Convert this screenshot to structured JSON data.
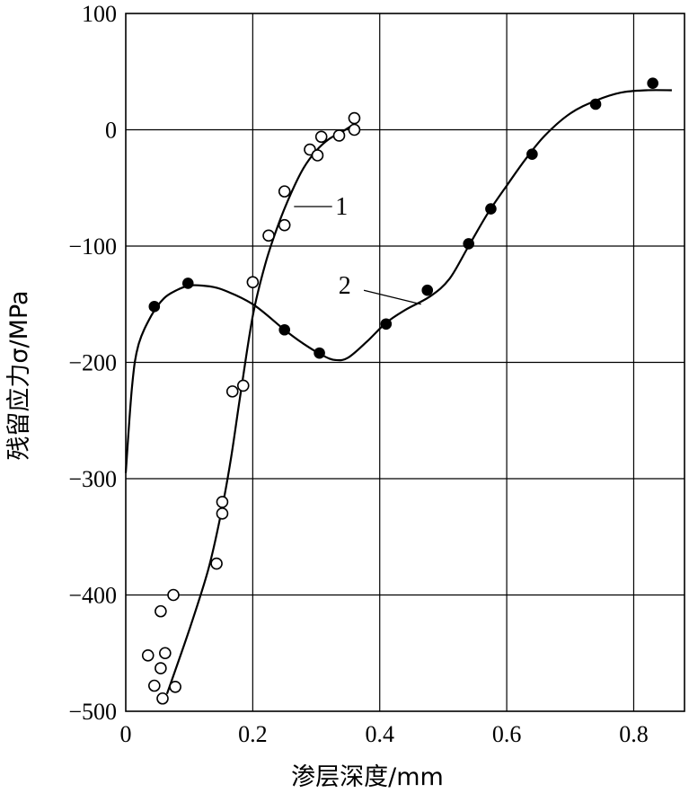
{
  "chart_data": {
    "type": "scatter",
    "xlabel": "渗层深度/mm",
    "ylabel": "残留应力σ/MPa",
    "xlim": [
      0,
      0.88
    ],
    "ylim": [
      -500,
      100
    ],
    "grid": true,
    "x_ticks": [
      "0",
      "0.2",
      "0.4",
      "0.6",
      "0.8"
    ],
    "x_tick_values": [
      0,
      0.2,
      0.4,
      0.6,
      0.8
    ],
    "y_ticks": [
      "100",
      "0",
      "−100",
      "−200",
      "−300",
      "−400",
      "−500"
    ],
    "y_tick_values": [
      100,
      0,
      -100,
      -200,
      -300,
      -400,
      -500
    ],
    "series": [
      {
        "name": "1",
        "marker": "open-circle",
        "points": [
          [
            0.035,
            -452
          ],
          [
            0.045,
            -478
          ],
          [
            0.055,
            -463
          ],
          [
            0.055,
            -414
          ],
          [
            0.058,
            -489
          ],
          [
            0.062,
            -450
          ],
          [
            0.075,
            -400
          ],
          [
            0.078,
            -479
          ],
          [
            0.143,
            -373
          ],
          [
            0.152,
            -320
          ],
          [
            0.152,
            -330
          ],
          [
            0.168,
            -225
          ],
          [
            0.185,
            -220
          ],
          [
            0.2,
            -131
          ],
          [
            0.225,
            -91
          ],
          [
            0.25,
            -82
          ],
          [
            0.25,
            -53
          ],
          [
            0.29,
            -17
          ],
          [
            0.302,
            -22
          ],
          [
            0.308,
            -6
          ],
          [
            0.336,
            -5
          ],
          [
            0.36,
            0
          ],
          [
            0.36,
            10
          ]
        ],
        "curve": [
          [
            0.065,
            -485
          ],
          [
            0.1,
            -430
          ],
          [
            0.13,
            -378
          ],
          [
            0.15,
            -330
          ],
          [
            0.165,
            -285
          ],
          [
            0.18,
            -230
          ],
          [
            0.2,
            -160
          ],
          [
            0.22,
            -115
          ],
          [
            0.24,
            -82
          ],
          [
            0.26,
            -55
          ],
          [
            0.28,
            -33
          ],
          [
            0.3,
            -18
          ],
          [
            0.32,
            -8
          ],
          [
            0.34,
            -2
          ],
          [
            0.36,
            5
          ]
        ]
      },
      {
        "name": "2",
        "marker": "filled-circle",
        "points": [
          [
            0.045,
            -152
          ],
          [
            0.098,
            -132
          ],
          [
            0.25,
            -172
          ],
          [
            0.305,
            -192
          ],
          [
            0.41,
            -167
          ],
          [
            0.475,
            -138
          ],
          [
            0.54,
            -98
          ],
          [
            0.575,
            -68
          ],
          [
            0.64,
            -21
          ],
          [
            0.74,
            22
          ],
          [
            0.83,
            40
          ]
        ],
        "curve": [
          [
            0,
            -295
          ],
          [
            0.01,
            -220
          ],
          [
            0.02,
            -185
          ],
          [
            0.04,
            -160
          ],
          [
            0.06,
            -145
          ],
          [
            0.08,
            -138
          ],
          [
            0.1,
            -134
          ],
          [
            0.12,
            -134
          ],
          [
            0.15,
            -137
          ],
          [
            0.2,
            -150
          ],
          [
            0.25,
            -172
          ],
          [
            0.28,
            -184
          ],
          [
            0.31,
            -194
          ],
          [
            0.33,
            -198
          ],
          [
            0.35,
            -196
          ],
          [
            0.38,
            -182
          ],
          [
            0.41,
            -166
          ],
          [
            0.44,
            -155
          ],
          [
            0.48,
            -143
          ],
          [
            0.51,
            -128
          ],
          [
            0.54,
            -100
          ],
          [
            0.57,
            -72
          ],
          [
            0.6,
            -48
          ],
          [
            0.63,
            -25
          ],
          [
            0.66,
            -5
          ],
          [
            0.7,
            14
          ],
          [
            0.74,
            25
          ],
          [
            0.78,
            32
          ],
          [
            0.82,
            34
          ],
          [
            0.86,
            34
          ]
        ]
      }
    ],
    "annotations": [
      {
        "text": "1",
        "target_series": "1"
      },
      {
        "text": "2",
        "target_series": "2"
      }
    ]
  }
}
